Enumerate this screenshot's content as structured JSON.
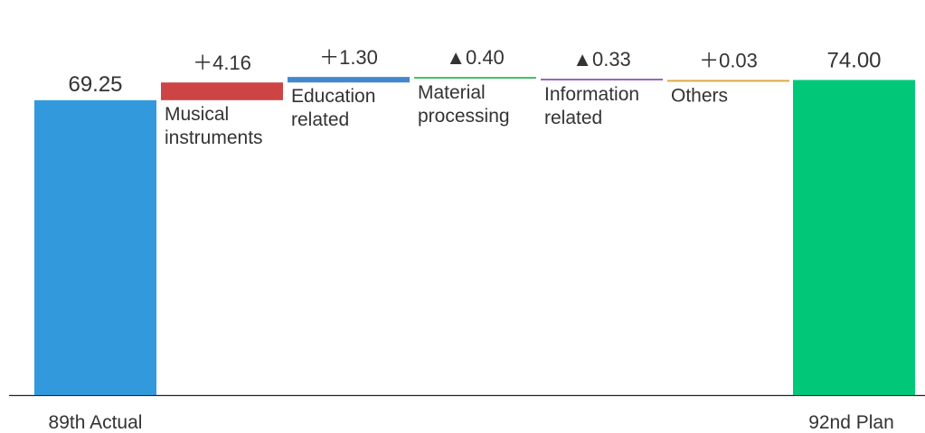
{
  "chart_data": {
    "type": "waterfall",
    "title": "",
    "start": {
      "label": "89th Actual",
      "value": 69.25,
      "value_label": "69.25",
      "color": "#3399dd"
    },
    "steps": [
      {
        "label_lines": [
          "Musical",
          "instruments"
        ],
        "value": 4.16,
        "value_label": "＋4.16",
        "color": "#cc4444"
      },
      {
        "label_lines": [
          "Education",
          "related"
        ],
        "value": 1.3,
        "value_label": "＋1.30",
        "color": "#4488cc"
      },
      {
        "label_lines": [
          "Material",
          "processing"
        ],
        "value": -0.4,
        "value_label": "▲0.40",
        "color": "#44bb66"
      },
      {
        "label_lines": [
          "Information",
          "related"
        ],
        "value": -0.33,
        "value_label": "▲0.33",
        "color": "#9966bb"
      },
      {
        "label_lines": [
          "Others"
        ],
        "value": 0.03,
        "value_label": "＋0.03",
        "color": "#ddaa44"
      }
    ],
    "end": {
      "label": "92nd Plan",
      "value": 74.0,
      "value_label": "74.00",
      "color": "#00c878"
    },
    "xlabel": "",
    "ylabel": ""
  }
}
